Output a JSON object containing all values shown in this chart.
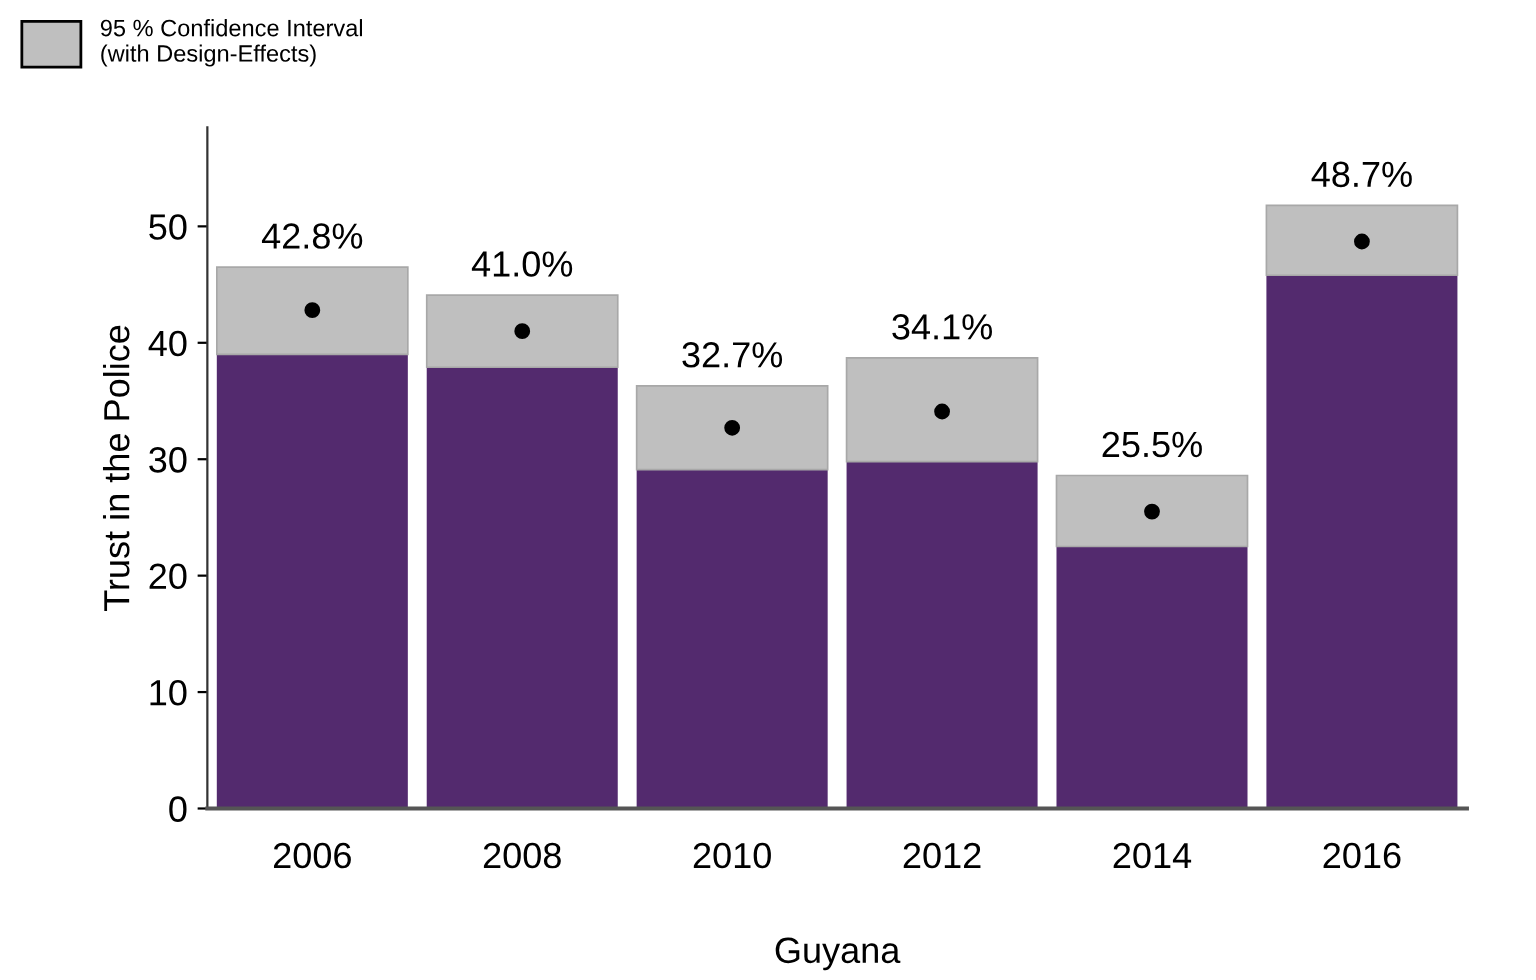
{
  "chart_data": {
    "type": "bar",
    "stacked": true,
    "xlabel": "Guyana",
    "ylabel": "Trust in the Police",
    "legend": "top left",
    "categories": [
      "2006",
      "2008",
      "2010",
      "2012",
      "2014",
      "2016"
    ],
    "series": [
      {
        "color": "#532a6e",
        "values": [
          39.0,
          37.9,
          29.1,
          29.8,
          22.5,
          45.8
        ]
      },
      {
        "name": "95 % Confidence Interval\n(with Design-Effects)",
        "color": "#bfbfbf",
        "values": [
          7.5,
          6.2,
          7.2,
          8.9,
          6.1,
          6.0
        ]
      },
      {
        "type": "scatter",
        "color": "#000000",
        "marker": "circle",
        "values": [
          42.8,
          41.0,
          32.7,
          34.1,
          25.5,
          48.7
        ],
        "value_labels": [
          "42.8%",
          "41.0%",
          "32.7%",
          "34.1%",
          "25.5%",
          "48.7%"
        ]
      }
    ],
    "ylim": [
      0,
      58.5
    ],
    "yticks": [
      0,
      10,
      20,
      30,
      40,
      50
    ],
    "grid": false
  }
}
